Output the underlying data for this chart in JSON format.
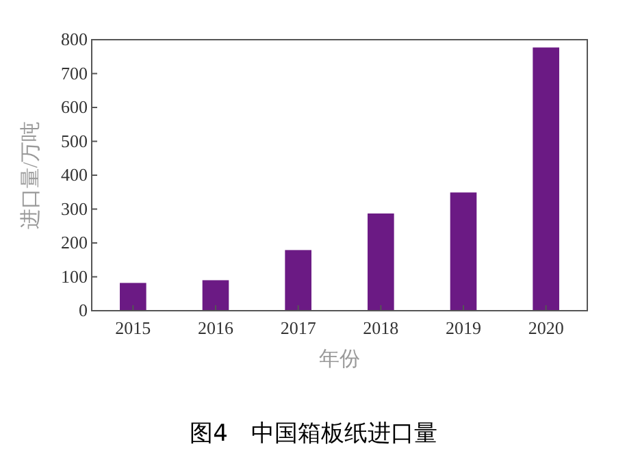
{
  "chart_data": {
    "type": "bar",
    "title": "图4　中国箱板纸进口量",
    "xlabel": "年份",
    "ylabel": "进口量/万吨",
    "categories": [
      "2015",
      "2016",
      "2017",
      "2018",
      "2019",
      "2020"
    ],
    "values": [
      82,
      90,
      179,
      287,
      349,
      777
    ],
    "color": "#6b1a84",
    "ylim": [
      0,
      800
    ],
    "yticks": [
      0,
      100,
      200,
      300,
      400,
      500,
      600,
      700,
      800
    ]
  }
}
